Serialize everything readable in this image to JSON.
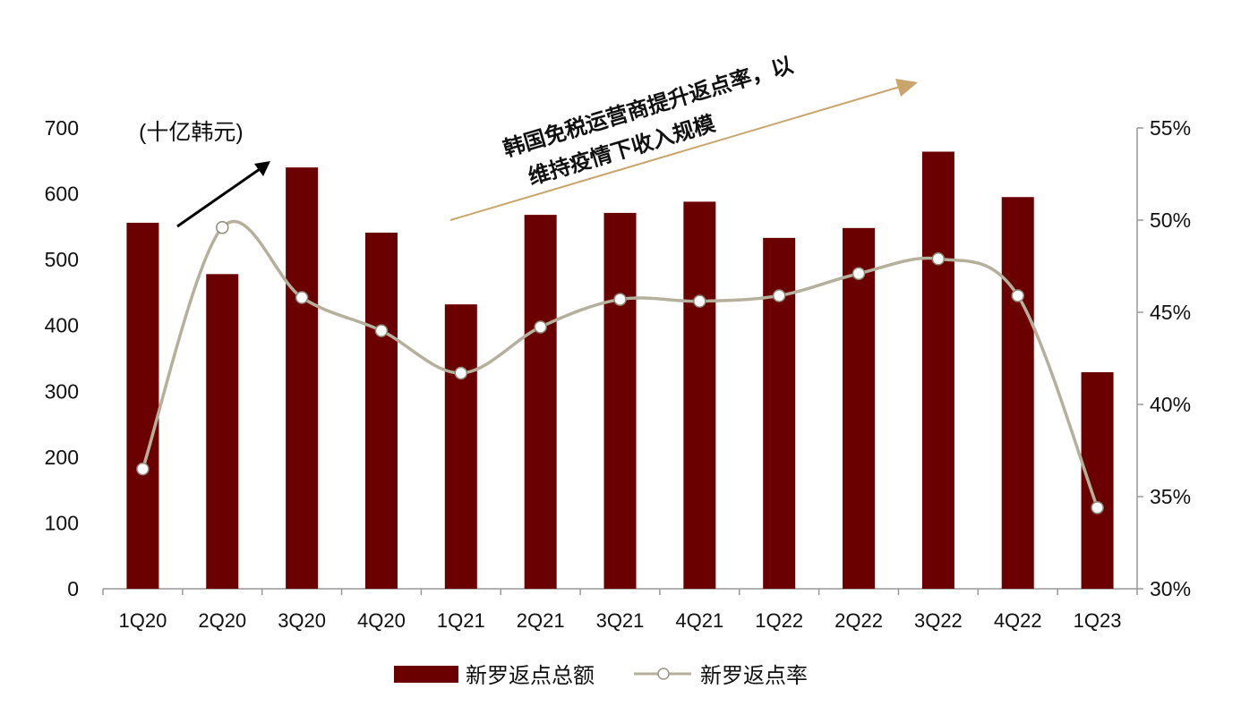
{
  "chart_data": {
    "type": "bar+line",
    "unit_label": "(十亿韩元)",
    "categories": [
      "1Q20",
      "2Q20",
      "3Q20",
      "4Q20",
      "1Q21",
      "2Q21",
      "3Q21",
      "4Q21",
      "1Q22",
      "2Q22",
      "3Q22",
      "4Q22",
      "1Q23"
    ],
    "series": [
      {
        "name": "新罗返点总额",
        "type": "bar",
        "axis": "left",
        "color": "#6b0000",
        "values": [
          556,
          478,
          640,
          541,
          432,
          568,
          571,
          588,
          533,
          548,
          664,
          595,
          329
        ]
      },
      {
        "name": "新罗返点率",
        "type": "line",
        "axis": "right",
        "color": "#b5b09c",
        "marker": "hollow-circle",
        "values": [
          36.5,
          49.6,
          45.8,
          44.0,
          41.7,
          44.2,
          45.7,
          45.6,
          45.9,
          47.1,
          47.9,
          45.9,
          34.4
        ]
      }
    ],
    "left_axis": {
      "ylim": [
        0,
        700
      ],
      "ticks": [
        "0",
        "100",
        "200",
        "300",
        "400",
        "500",
        "600",
        "700"
      ]
    },
    "right_axis": {
      "ylim": [
        30,
        55
      ],
      "ticks": [
        "30%",
        "35%",
        "40%",
        "45%",
        "50%",
        "55%"
      ]
    },
    "grid": false,
    "legend": "bottom",
    "annotations": {
      "line1": "韩国免税运营商提升返点率，以",
      "line2": "维持疫情下收入规模",
      "arrow_black_color": "#000000",
      "arrow_orange_color": "#c9a46c"
    }
  }
}
